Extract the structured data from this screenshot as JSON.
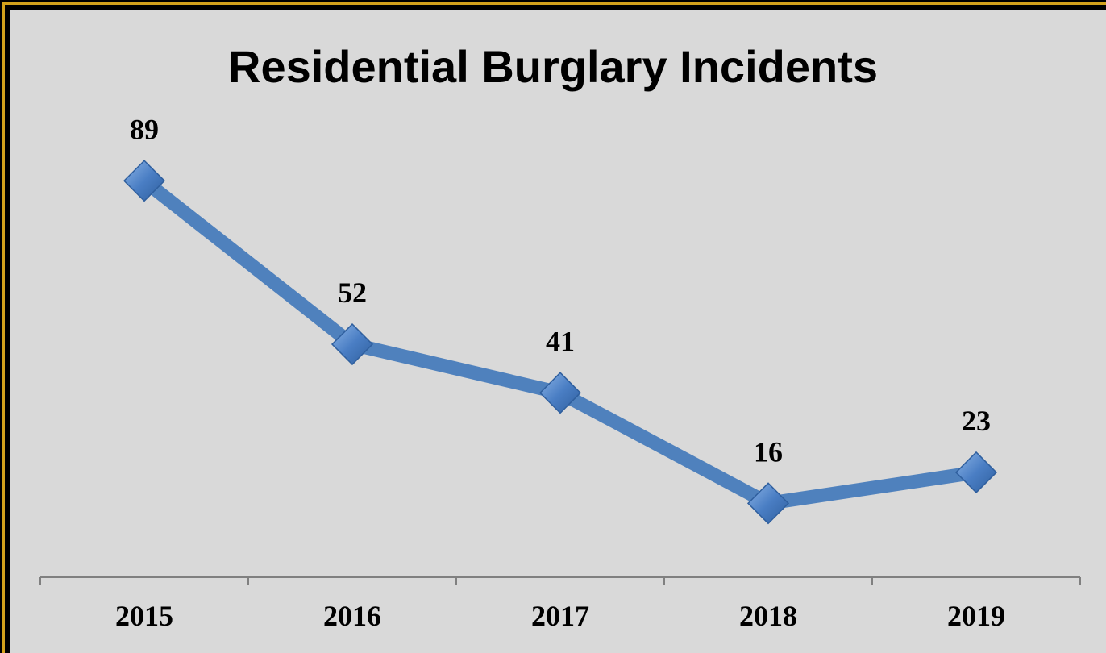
{
  "chart_data": {
    "type": "line",
    "title": "Residential Burglary Incidents",
    "categories": [
      "2015",
      "2016",
      "2017",
      "2018",
      "2019"
    ],
    "series": [
      {
        "values": [
          89,
          52,
          41,
          16,
          23
        ]
      }
    ],
    "data_labels": [
      "89",
      "52",
      "41",
      "16",
      "23"
    ],
    "xlabel": "",
    "ylabel": "",
    "ylim": [
      0,
      100
    ],
    "grid": false,
    "legend": "none",
    "marker": "diamond",
    "colors": {
      "line": "#4f81bd",
      "marker": "#4a7ec4",
      "marker_highlight": "#7aa7dd",
      "background": "#d9d9d9",
      "frame": "#d4a21c",
      "axis": "#808080"
    }
  }
}
